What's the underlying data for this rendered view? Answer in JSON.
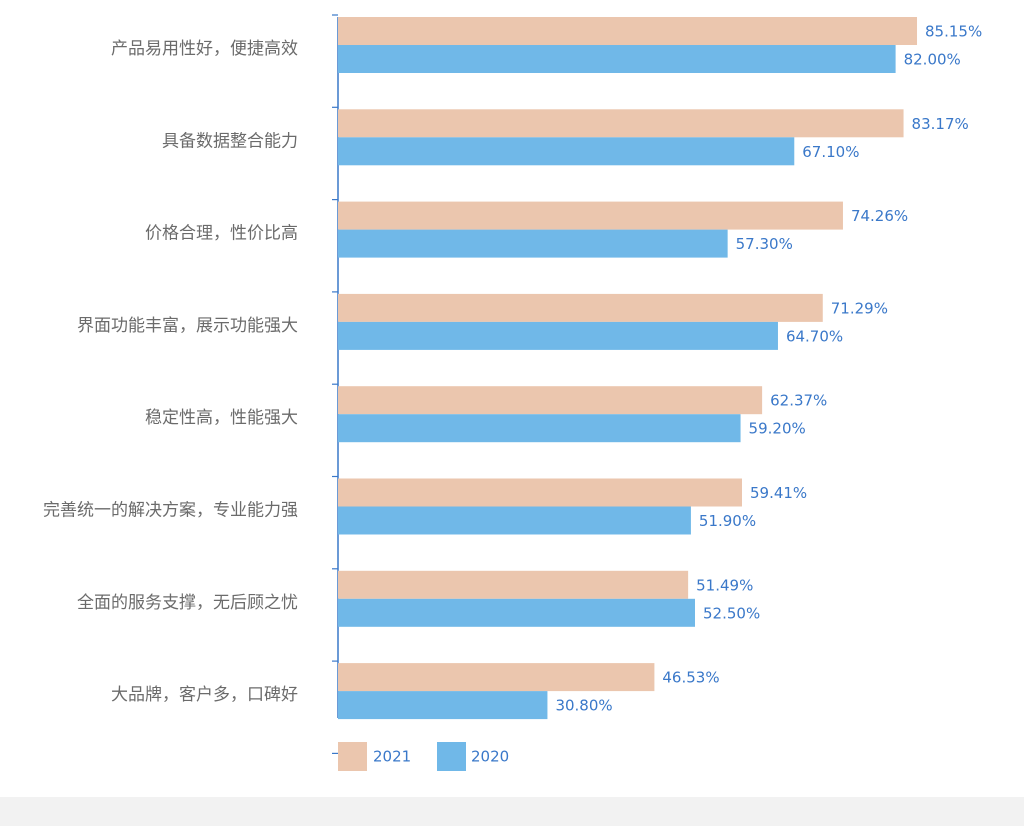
{
  "chart_data": {
    "type": "bar",
    "orientation": "horizontal",
    "categories": [
      "产品易用性好，便捷高效",
      "具备数据整合能力",
      "价格合理，性价比高",
      "界面功能丰富，展示功能强大",
      "稳定性高，性能强大",
      "完善统一的解决方案，专业能力强",
      "全面的服务支撑，无后顾之忧",
      "大品牌，客户多，口碑好"
    ],
    "series": [
      {
        "name": "2021",
        "color": "#ebc6ae",
        "values": [
          85.15,
          83.17,
          74.26,
          71.29,
          62.37,
          59.41,
          51.49,
          46.53
        ],
        "labels": [
          "85.15%",
          "83.17%",
          "74.26%",
          "71.29%",
          "62.37%",
          "59.41%",
          "51.49%",
          "46.53%"
        ]
      },
      {
        "name": "2020",
        "color": "#70b8e8",
        "values": [
          82.0,
          67.1,
          57.3,
          64.7,
          59.2,
          51.9,
          52.5,
          30.8
        ],
        "labels": [
          "82.00%",
          "67.10%",
          "57.30%",
          "64.70%",
          "59.20%",
          "51.90%",
          "52.50%",
          "30.80%"
        ]
      }
    ],
    "xlim": [
      0,
      100
    ],
    "unit": "%",
    "legend": "bottom-left",
    "axis_color": "#3a78c9",
    "grid": false
  }
}
